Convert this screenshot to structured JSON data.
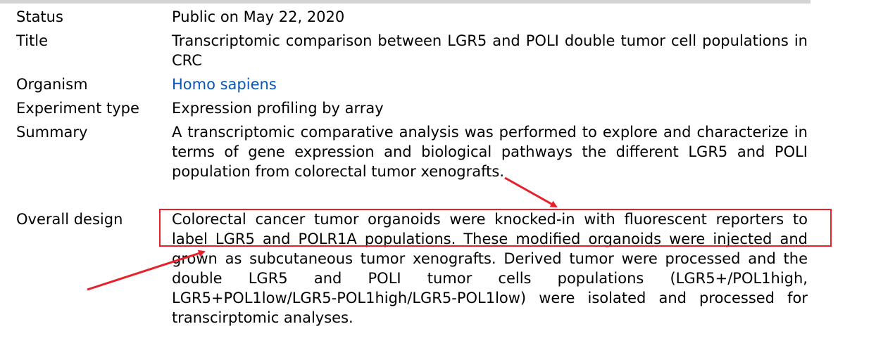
{
  "rows": {
    "status": {
      "label": "Status",
      "value": "Public on May 22, 2020"
    },
    "title": {
      "label": "Title",
      "value": "Transcriptomic comparison between LGR5 and POLI double tumor cell populations in CRC"
    },
    "organism": {
      "label": "Organism",
      "value": "Homo sapiens"
    },
    "experiment_type": {
      "label": "Experiment type",
      "value": "Expression profiling by array"
    },
    "summary": {
      "label": "Summary",
      "value": "A transcriptomic comparative analysis was performed to explore and characterize in terms of gene expression and biological pathways the different LGR5 and POLI population from colorectal tumor xenografts."
    },
    "overall_design": {
      "label": "Overall design",
      "value": "Colorectal cancer tumor organoids were knocked-in with fluorescent reporters to label LGR5 and POLR1A populations. These modified organoids were injected and grown as subcutaneous tumor xenografts. Derived tumor were processed and the double LGR5 and POLI tumor cells populations (LGR5+/POL1high, LGR5+POL1low/LGR5-POL1high/LGR5-POL1low) were isolated and processed for transcirptomic analyses."
    }
  },
  "colors": {
    "link": "#0a55b8",
    "annotation": "#e8202a",
    "topbar": "#d4d4d4"
  }
}
